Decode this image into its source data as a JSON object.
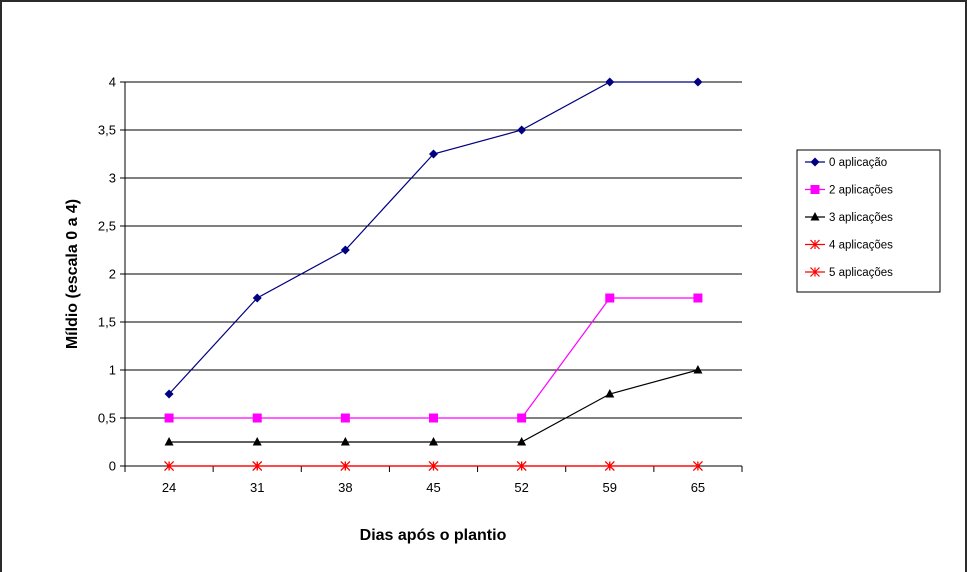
{
  "chart_data": {
    "type": "line",
    "categories": [
      "24",
      "31",
      "38",
      "45",
      "52",
      "59",
      "65"
    ],
    "xlabel": "Dias após o plantio",
    "ylabel": "Míldio (escala 0 a 4)",
    "ylim": [
      0,
      4
    ],
    "y_ticks": [
      "0",
      "0,5",
      "1",
      "1,5",
      "2",
      "2,5",
      "3",
      "3,5",
      "4"
    ],
    "grid": "horizontal",
    "legend_position": "right",
    "series": [
      {
        "name": "0 aplicação",
        "values": [
          0.75,
          1.75,
          2.25,
          3.25,
          3.5,
          4,
          4
        ],
        "color": "#000080",
        "marker": "diamond"
      },
      {
        "name": "2 aplicações",
        "values": [
          0.5,
          0.5,
          0.5,
          0.5,
          0.5,
          1.75,
          1.75
        ],
        "color": "#ff00ff",
        "marker": "square"
      },
      {
        "name": "3 aplicações",
        "values": [
          0.25,
          0.25,
          0.25,
          0.25,
          0.25,
          0.75,
          1
        ],
        "color": "#000000",
        "marker": "triangle"
      },
      {
        "name": "4 aplicações",
        "values": [
          0,
          0,
          0,
          0,
          0,
          0,
          0
        ],
        "color": "#ff0000",
        "marker": "asterisk"
      },
      {
        "name": "5 aplicações",
        "values": [
          0,
          0,
          0,
          0,
          0,
          0,
          0
        ],
        "color": "#ff0000",
        "marker": "asterisk"
      }
    ]
  }
}
